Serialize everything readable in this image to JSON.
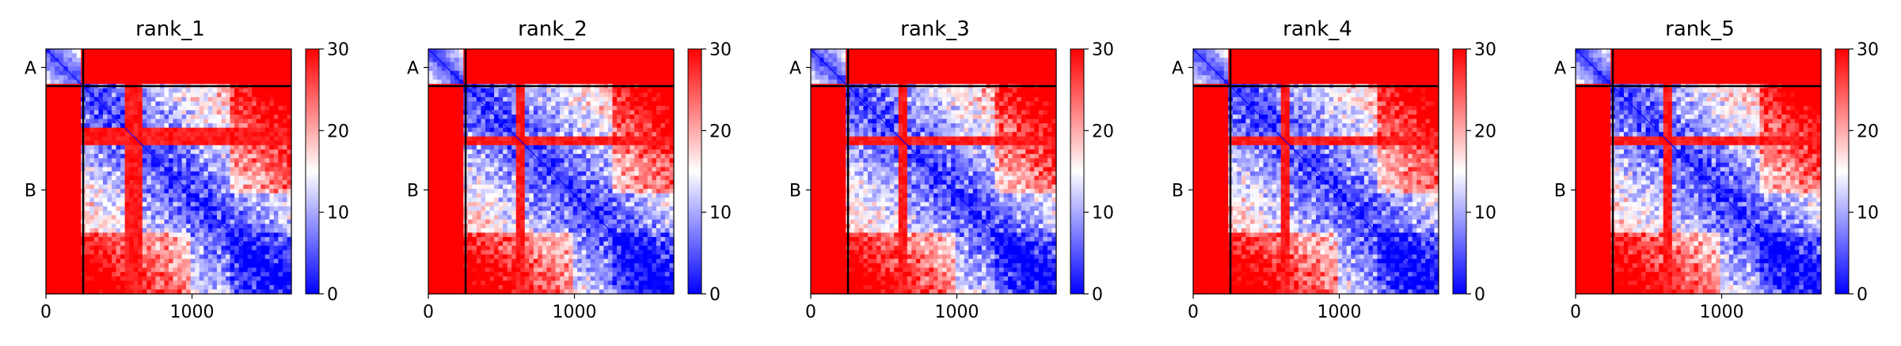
{
  "chart_data": {
    "type": "heatmap",
    "colorscale": {
      "low": "#0000ff",
      "mid": "#ffffff",
      "high": "#ff0000"
    },
    "colorbar": {
      "min": 0,
      "max": 30,
      "ticks": [
        0,
        10,
        20,
        30
      ]
    },
    "xticks": [
      0,
      1000
    ],
    "n_residues": 1680,
    "chain_boundary": 255,
    "chain_labels": [
      {
        "label": "A",
        "center": 127
      },
      {
        "label": "B",
        "center": 967
      }
    ],
    "panels": [
      {
        "title": "rank_1",
        "band_start": 550,
        "band_end": 660,
        "band_col": 640
      },
      {
        "title": "rank_2",
        "band_start": 610,
        "band_end": 650,
        "band_col": 640
      },
      {
        "title": "rank_3",
        "band_start": 610,
        "band_end": 650,
        "band_col": 640
      },
      {
        "title": "rank_4",
        "band_start": 610,
        "band_end": 650,
        "band_col": 640
      },
      {
        "title": "rank_5",
        "band_start": 610,
        "band_end": 650,
        "band_col": 640
      }
    ]
  }
}
